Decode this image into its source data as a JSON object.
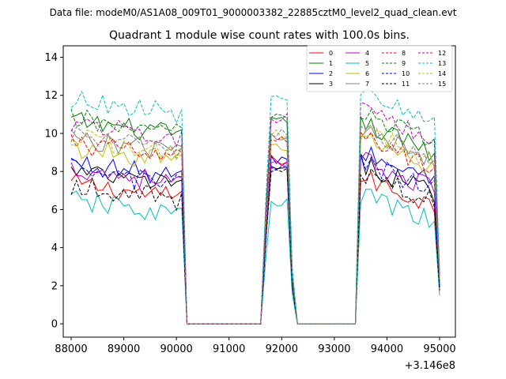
{
  "suptitle": "Data file: modeM0/AS1A08_009T01_9000003382_22885cztM0_level2_quad_clean.evt",
  "chart_data": {
    "type": "line",
    "title": "Quadrant 1 module wise count rates with 100.0s bins.",
    "xlabel": "",
    "ylabel": "",
    "x_offset_label": "+3.146e8",
    "xlim": [
      87850,
      95300
    ],
    "ylim": [
      -0.7,
      14.6
    ],
    "xticks": [
      88000,
      89000,
      90000,
      91000,
      92000,
      93000,
      94000,
      95000
    ],
    "xtick_labels": [
      "88000",
      "89000",
      "90000",
      "91000",
      "92000",
      "93000",
      "94000",
      "95000"
    ],
    "yticks": [
      0,
      2,
      4,
      6,
      8,
      10,
      12,
      14
    ],
    "ytick_labels": [
      "0",
      "2",
      "4",
      "6",
      "8",
      "10",
      "12",
      "14"
    ],
    "grid": false,
    "legend_position": "top-right",
    "segments": [
      {
        "x_start": 88000,
        "x_end": 90100
      },
      {
        "x_start": 91700,
        "x_end": 92200
      },
      {
        "x_start": 93500,
        "x_end": 95000
      }
    ],
    "series": [
      {
        "name": "0",
        "color": "#ff0000",
        "dash": "solid",
        "levels": [
          7.1,
          8.6,
          6.9
        ]
      },
      {
        "name": "1",
        "color": "#008000",
        "dash": "solid",
        "levels": [
          10.4,
          10.6,
          9.7
        ]
      },
      {
        "name": "2",
        "color": "#0000ff",
        "dash": "solid",
        "levels": [
          8.2,
          8.6,
          8.2
        ]
      },
      {
        "name": "3",
        "color": "#000000",
        "dash": "solid",
        "levels": [
          7.7,
          8.1,
          7.6
        ]
      },
      {
        "name": "4",
        "color": "#bf00bf",
        "dash": "solid",
        "levels": [
          7.9,
          8.3,
          7.8
        ]
      },
      {
        "name": "5",
        "color": "#00bfbf",
        "dash": "solid",
        "levels": [
          6.2,
          6.3,
          6.0
        ]
      },
      {
        "name": "6",
        "color": "#bfbf00",
        "dash": "solid",
        "levels": [
          9.0,
          9.3,
          8.9
        ]
      },
      {
        "name": "7",
        "color": "#808080",
        "dash": "solid",
        "levels": [
          9.5,
          9.9,
          9.3
        ]
      },
      {
        "name": "8",
        "color": "#ff0000",
        "dash": "dashed",
        "levels": [
          9.2,
          9.6,
          9.0
        ]
      },
      {
        "name": "9",
        "color": "#008000",
        "dash": "dashed",
        "levels": [
          10.5,
          10.8,
          10.2
        ]
      },
      {
        "name": "10",
        "color": "#0000ff",
        "dash": "dashed",
        "levels": [
          7.8,
          8.2,
          7.7
        ]
      },
      {
        "name": "11",
        "color": "#000000",
        "dash": "dashed",
        "levels": [
          7.0,
          8.0,
          7.1
        ]
      },
      {
        "name": "12",
        "color": "#bf00bf",
        "dash": "dashed",
        "levels": [
          10.3,
          10.8,
          10.3
        ]
      },
      {
        "name": "13",
        "color": "#00bfbf",
        "dash": "dashed",
        "levels": [
          11.5,
          12.0,
          11.2
        ]
      },
      {
        "name": "14",
        "color": "#bfbf00",
        "dash": "dashed",
        "levels": [
          9.5,
          10.0,
          9.3
        ]
      },
      {
        "name": "15",
        "color": "#808080",
        "dash": "dashed",
        "levels": [
          9.6,
          10.0,
          9.4
        ]
      }
    ],
    "bin_step": 100,
    "zero_level": 0.0
  }
}
